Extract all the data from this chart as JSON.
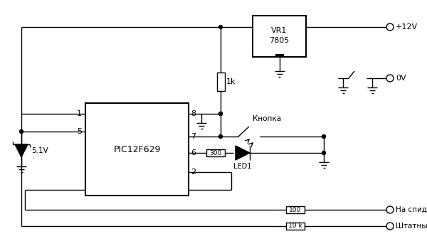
{
  "bg_color": "#ffffff",
  "line_color": "#000000",
  "fig_width": 6.0,
  "fig_height": 3.53,
  "dpi": 100,
  "pic_label": "PIC12F629",
  "vr1_label1": "VR1",
  "vr1_label2": "7805",
  "res_1k_label": "1k",
  "res_300_label": "300",
  "res_100_label": "100",
  "res_10k_label": "10 k",
  "led_label": "LED1",
  "button_label": "Кнопка",
  "v12_label": "+12V",
  "v0_label": "0V",
  "speedometer_label": "На спидометр",
  "signal_label": "Штатный сигнал",
  "zener_label": "5.1V"
}
